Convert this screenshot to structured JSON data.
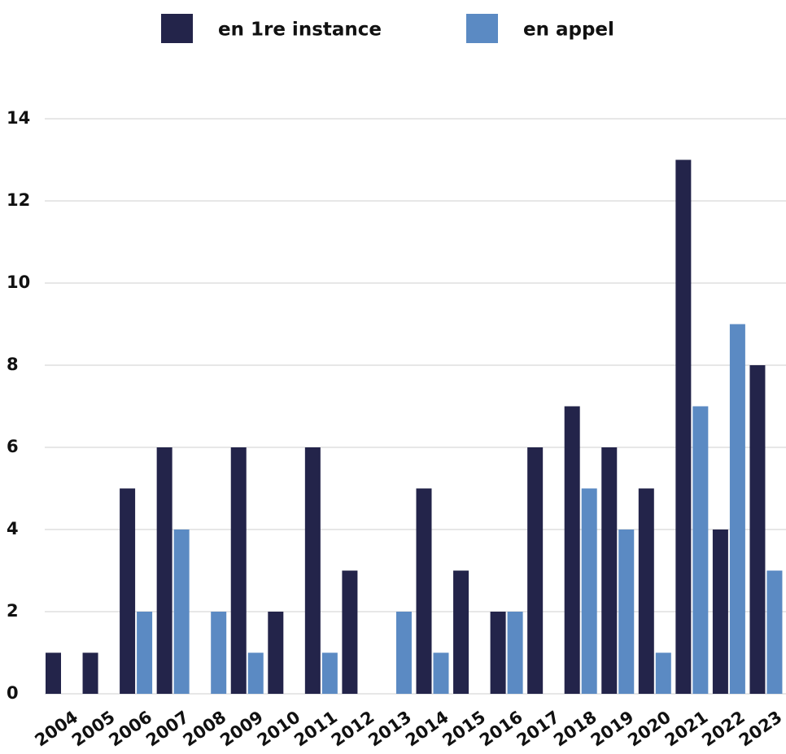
{
  "chart_data": {
    "type": "bar",
    "categories": [
      "2004",
      "2005",
      "2006",
      "2007",
      "2008",
      "2009",
      "2010",
      "2011",
      "2012",
      "2013",
      "2014",
      "2015",
      "2016",
      "2017",
      "2018",
      "2019",
      "2020",
      "2021",
      "2022",
      "2023"
    ],
    "series": [
      {
        "name": "en 1re instance",
        "color": "#23244a",
        "values": [
          1,
          1,
          5,
          6,
          0,
          6,
          2,
          6,
          3,
          0,
          5,
          3,
          2,
          6,
          7,
          6,
          5,
          13,
          4,
          8
        ]
      },
      {
        "name": "en appel",
        "color": "#5b8ac3",
        "values": [
          0,
          0,
          2,
          4,
          2,
          1,
          0,
          1,
          0,
          2,
          1,
          0,
          2,
          0,
          5,
          4,
          1,
          7,
          9,
          3
        ]
      }
    ],
    "ylim": [
      0,
      14
    ],
    "yticks": [
      0,
      2,
      4,
      6,
      8,
      10,
      12,
      14
    ],
    "grid": true,
    "legend": "top"
  }
}
